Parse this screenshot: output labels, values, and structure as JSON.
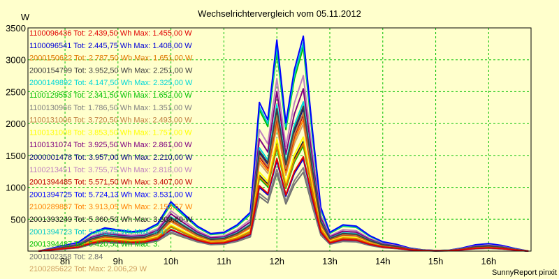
{
  "chart_data": {
    "type": "line",
    "title": "Wechselrichtervergleich vom 05.11.2012",
    "ylabel": "W",
    "ylim": [
      0,
      3500
    ],
    "yticks": [
      500,
      1000,
      1500,
      2000,
      2500,
      3000,
      3500
    ],
    "xlim": [
      7.3,
      16.8
    ],
    "xticks": [
      {
        "label": "8h",
        "value": 8
      },
      {
        "label": "9h",
        "value": 9
      },
      {
        "label": "10h",
        "value": 10
      },
      {
        "label": "11h",
        "value": 11
      },
      {
        "label": "12h",
        "value": 12
      },
      {
        "label": "13h",
        "value": 13
      },
      {
        "label": "14h",
        "value": 14
      },
      {
        "label": "15h",
        "value": 15
      },
      {
        "label": "16h",
        "value": 16
      }
    ],
    "credit": "SunnyReport pinxit",
    "x": [
      7.5,
      8.25,
      8.5,
      8.75,
      9.0,
      9.25,
      9.5,
      9.75,
      10.0,
      10.25,
      10.5,
      10.75,
      11.0,
      11.25,
      11.5,
      11.67,
      11.83,
      12.0,
      12.17,
      12.33,
      12.5,
      12.67,
      12.83,
      13.0,
      13.25,
      13.5,
      13.75,
      14.0,
      14.25,
      14.5,
      14.75,
      15.0,
      15.25,
      15.5,
      15.75,
      16.0,
      16.25,
      16.5,
      16.75
    ],
    "series": [
      {
        "name": "1100096436",
        "total": "Tot: 2.439,50 Wh",
        "max": "Max: 1.455,00 W",
        "color": "#e00000",
        "scale": 0.43
      },
      {
        "name": "1100096541",
        "total": "Tot: 2.445,75 Wh",
        "max": "Max: 1.408,00 W",
        "color": "#0000d8",
        "scale": 0.42
      },
      {
        "name": "2000150622",
        "total": "Tot: 2.787,50 Wh",
        "max": "Max: 1.651,00 W",
        "color": "#e07800",
        "scale": 0.49
      },
      {
        "name": "2000154799",
        "total": "Tot: 3.952,50 Wh",
        "max": "Max: 2.251,00 W",
        "color": "#404040",
        "scale": 0.66
      },
      {
        "name": "2000149892",
        "total": "Tot: 4.147,50 Wh",
        "max": "Max: 2.325,00 W",
        "color": "#00d8d8",
        "scale": 0.68
      },
      {
        "name": "1100129553",
        "total": "Tot: 2.341,50 Wh",
        "max": "Max: 1.652,00 W",
        "color": "#00c000",
        "scale": 0.48
      },
      {
        "name": "1100130966",
        "total": "Tot: 1.786,50 Wh",
        "max": "Max: 1.351,00 W",
        "color": "#808080",
        "scale": 0.38
      },
      {
        "name": "1100131006",
        "total": "Tot: 3.720,50 Wh",
        "max": "Max: 2.493,00 W",
        "color": "#c08040",
        "scale": 0.63
      },
      {
        "name": "1100131008",
        "total": "Tot: 3.853,50 Wh",
        "max": "Max: 1.757,00 W",
        "color": "#ffff00",
        "scale": 0.52
      },
      {
        "name": "1100131074",
        "total": "Tot: 3.925,50 Wh",
        "max": "Max: 2.861,00 W",
        "color": "#800080",
        "scale": 0.74
      },
      {
        "name": "2000001478",
        "total": "Tot: 3.957,00 Wh",
        "max": "Max: 2.210,00 W",
        "color": "#000080",
        "scale": 0.65
      },
      {
        "name": "1100213451",
        "total": "Tot: 3.755,75 Wh",
        "max": "Max: 2.818,00 W",
        "color": "#c080c0",
        "scale": 0.8
      },
      {
        "name": "2001394485",
        "total": "Tot: 5.571,50 Wh",
        "max": "Max: 3.407,00 W",
        "color": "#c00000",
        "scale": 0.62
      },
      {
        "name": "2001394725",
        "total": "Tot: 5.724,13 Wh",
        "max": "Max: 3.531,00 W",
        "color": "#0000ff",
        "scale": 0.98
      },
      {
        "name": "2100289887",
        "total": "Tot: 3.913,05 Wh",
        "max": "Max: 2.153,57 W",
        "color": "#ff8000",
        "scale": 0.6
      },
      {
        "name": "2001393249",
        "total": "Tot: 5.360,50 Wh",
        "max": "Max: 3.309,60 W",
        "color": "#202020",
        "scale": 0.5
      },
      {
        "name": "2001394723",
        "total": "Tot: 5.603,88 Wh",
        "max": "Max: 3.41",
        "color": "#00c8c8",
        "scale": 0.95
      },
      {
        "name": "2001394487",
        "total": "Tot: 5.420,50 Wh",
        "max": "Max: 3.",
        "color": "#00c000",
        "scale": 0.93
      },
      {
        "name": "2001102358",
        "total": "Tot: 2.84",
        "max": "",
        "color": "#707070",
        "scale": 0.36
      },
      {
        "name": "2100285622",
        "total": "Tot:",
        "max": "Max: 2.006,29 W",
        "color": "#d0a060",
        "scale": 0.58
      }
    ],
    "base_profile": [
      0,
      140,
      290,
      370,
      340,
      310,
      330,
      440,
      790,
      590,
      400,
      280,
      300,
      420,
      620,
      2380,
      2100,
      3380,
      2050,
      2900,
      3440,
      1950,
      700,
      300,
      420,
      400,
      250,
      150,
      110,
      50,
      20,
      10,
      15,
      50,
      100,
      120,
      90,
      40,
      0
    ]
  }
}
